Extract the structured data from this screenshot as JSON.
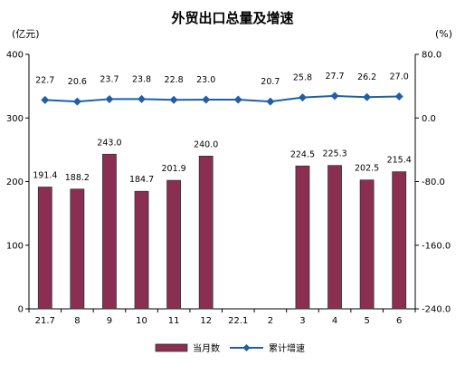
{
  "chart_data": {
    "type": "bar",
    "title": "外贸出口总量及增速",
    "left_unit": "(亿元)",
    "right_unit": "(%)",
    "categories": [
      "21.7",
      "8",
      "9",
      "10",
      "11",
      "12",
      "22.1",
      "2",
      "3",
      "4",
      "5",
      "6"
    ],
    "series": [
      {
        "name": "当月数",
        "type": "bar",
        "axis": "left",
        "color": "#8B2F52",
        "values": [
          191.4,
          188.2,
          243.0,
          184.7,
          201.9,
          240.0,
          null,
          null,
          224.5,
          225.3,
          202.5,
          215.4
        ]
      },
      {
        "name": "累计增速",
        "type": "line",
        "axis": "right",
        "color": "#1F5FA8",
        "values": [
          22.7,
          20.6,
          23.7,
          23.8,
          22.8,
          23.0,
          23.0,
          20.7,
          25.8,
          27.7,
          26.2,
          27.0
        ],
        "labels": [
          "22.7",
          "20.6",
          "23.7",
          "23.8",
          "22.8",
          "23.0",
          "",
          "20.7",
          "25.8",
          "27.7",
          "26.2",
          "27.0"
        ]
      }
    ],
    "bar_labels": [
      "191.4",
      "188.2",
      "243.0",
      "184.7",
      "201.9",
      "240.0",
      "",
      "",
      "224.5",
      "225.3",
      "202.5",
      "215.4"
    ],
    "y_left": {
      "min": 0,
      "max": 400,
      "ticks": [
        "0",
        "100",
        "200",
        "300",
        "400"
      ]
    },
    "y_right": {
      "min": -240,
      "max": 80,
      "ticks": [
        "-240.0",
        "-160.0",
        "-80.0",
        "0.0",
        "80.0"
      ]
    },
    "grid": false,
    "legend_position": "bottom"
  }
}
